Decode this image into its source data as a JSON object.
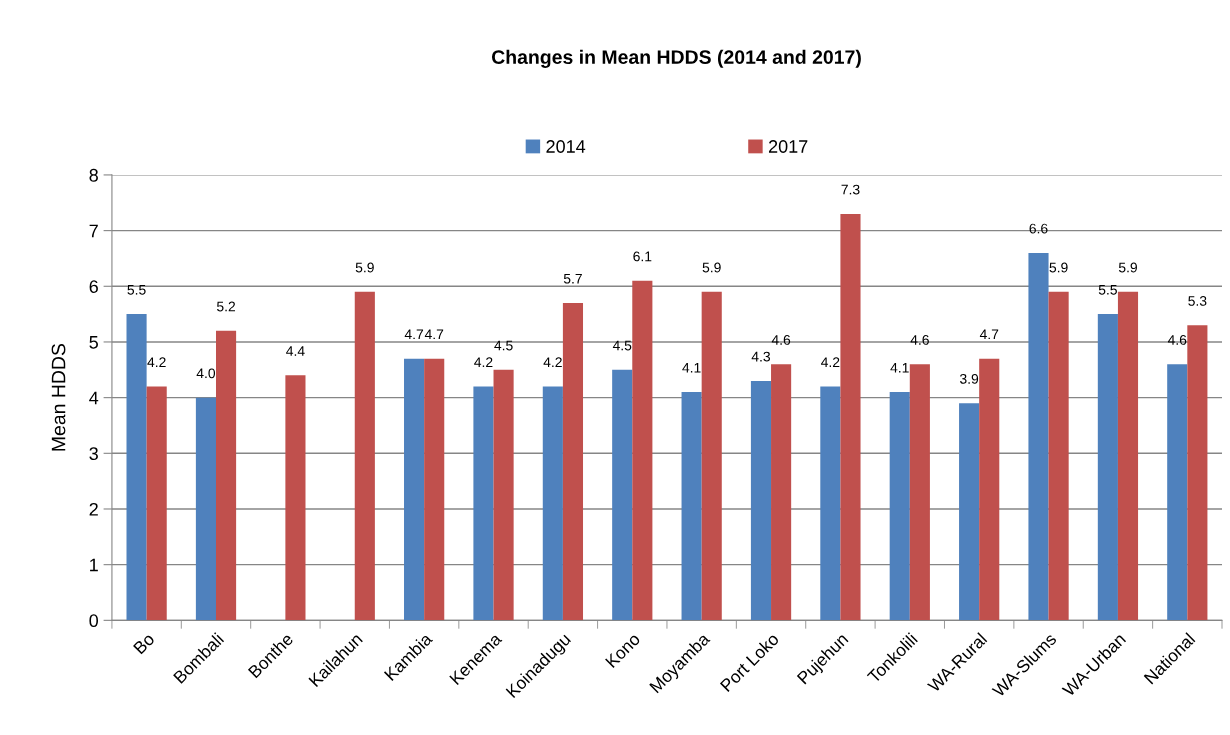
{
  "chart_data": {
    "type": "bar",
    "title": "Changes in Mean HDDS (2014 and 2017)",
    "ylabel": "Mean HDDS",
    "categories": [
      "Bo",
      "Bombali",
      "Bonthe",
      "Kailahun",
      "Kambia",
      "Kenema",
      "Koinadugu",
      "Kono",
      "Moyamba",
      "Port Loko",
      "Pujehun",
      "Tonkolili",
      "WA-Rural",
      "WA-Slums",
      "WA-Urban",
      "National"
    ],
    "series": [
      {
        "name": "2014",
        "color": "#4f81bd",
        "values": [
          5.5,
          4.0,
          null,
          null,
          4.7,
          4.2,
          4.2,
          4.5,
          4.1,
          4.3,
          4.2,
          4.1,
          3.9,
          6.6,
          5.5,
          4.6
        ],
        "value_labels": [
          "5.5",
          "4.0",
          null,
          null,
          "4.7",
          "4.2",
          "4.2",
          "4.5",
          "4.1",
          "4.3",
          "4.2",
          "4.1",
          "3.9",
          "6.6",
          "5.5",
          "4.6"
        ]
      },
      {
        "name": "2017",
        "color": "#c0504d",
        "values": [
          4.2,
          5.2,
          4.4,
          5.9,
          4.7,
          4.5,
          5.7,
          6.1,
          5.9,
          4.6,
          7.3,
          4.6,
          4.7,
          5.9,
          5.9,
          5.3
        ],
        "value_labels": [
          "4.2",
          "5.2",
          "4.4",
          "5.9",
          "4.7",
          "4.5",
          "5.7",
          "6.1",
          "5.9",
          "4.6",
          "7.3",
          "4.6",
          "4.7",
          "5.9",
          "5.9",
          "5.3"
        ]
      }
    ],
    "ylim": [
      0,
      8
    ],
    "yticks": [
      0,
      1,
      2,
      3,
      4,
      5,
      6,
      7,
      8
    ],
    "grid": "y",
    "legend": "top"
  }
}
